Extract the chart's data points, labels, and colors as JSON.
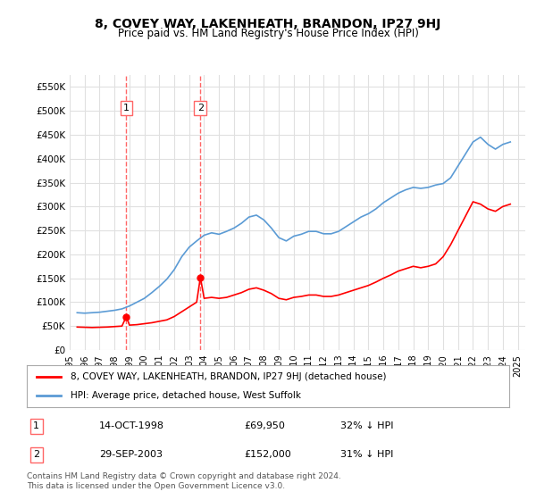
{
  "title": "8, COVEY WAY, LAKENHEATH, BRANDON, IP27 9HJ",
  "subtitle": "Price paid vs. HM Land Registry's House Price Index (HPI)",
  "ylabel_ticks": [
    "£0",
    "£50K",
    "£100K",
    "£150K",
    "£200K",
    "£250K",
    "£300K",
    "£350K",
    "£400K",
    "£450K",
    "£500K",
    "£550K"
  ],
  "y_values": [
    0,
    50000,
    100000,
    150000,
    200000,
    250000,
    300000,
    350000,
    400000,
    450000,
    500000,
    550000
  ],
  "ylim": [
    0,
    575000
  ],
  "xlim_start": 1995.5,
  "xlim_end": 2025.5,
  "hpi_color": "#5B9BD5",
  "price_color": "#FF0000",
  "grid_color": "#E0E0E0",
  "background_color": "#FFFFFF",
  "sale1_x": 1998.79,
  "sale1_y": 69950,
  "sale2_x": 2003.75,
  "sale2_y": 152000,
  "sale1_label": "1",
  "sale2_label": "2",
  "vline1_x": 1998.79,
  "vline2_x": 2003.75,
  "vline_color": "#FF6666",
  "legend_house": "8, COVEY WAY, LAKENHEATH, BRANDON, IP27 9HJ (detached house)",
  "legend_hpi": "HPI: Average price, detached house, West Suffolk",
  "table_row1": [
    "1",
    "14-OCT-1998",
    "£69,950",
    "32% ↓ HPI"
  ],
  "table_row2": [
    "2",
    "29-SEP-2003",
    "£152,000",
    "31% ↓ HPI"
  ],
  "footnote": "Contains HM Land Registry data © Crown copyright and database right 2024.\nThis data is licensed under the Open Government Licence v3.0.",
  "hpi_data_x": [
    1995.5,
    1996.0,
    1996.5,
    1997.0,
    1997.5,
    1998.0,
    1998.5,
    1999.0,
    1999.5,
    2000.0,
    2000.5,
    2001.0,
    2001.5,
    2002.0,
    2002.5,
    2003.0,
    2003.5,
    2004.0,
    2004.5,
    2005.0,
    2005.5,
    2006.0,
    2006.5,
    2007.0,
    2007.5,
    2008.0,
    2008.5,
    2009.0,
    2009.5,
    2010.0,
    2010.5,
    2011.0,
    2011.5,
    2012.0,
    2012.5,
    2013.0,
    2013.5,
    2014.0,
    2014.5,
    2015.0,
    2015.5,
    2016.0,
    2016.5,
    2017.0,
    2017.5,
    2018.0,
    2018.5,
    2019.0,
    2019.5,
    2020.0,
    2020.5,
    2021.0,
    2021.5,
    2022.0,
    2022.5,
    2023.0,
    2023.5,
    2024.0,
    2024.5
  ],
  "hpi_data_y": [
    78000,
    77000,
    78000,
    79000,
    81000,
    83000,
    86000,
    92000,
    100000,
    108000,
    120000,
    133000,
    148000,
    168000,
    195000,
    215000,
    228000,
    240000,
    245000,
    242000,
    248000,
    255000,
    265000,
    278000,
    282000,
    272000,
    255000,
    235000,
    228000,
    238000,
    242000,
    248000,
    248000,
    243000,
    243000,
    248000,
    258000,
    268000,
    278000,
    285000,
    295000,
    308000,
    318000,
    328000,
    335000,
    340000,
    338000,
    340000,
    345000,
    348000,
    360000,
    385000,
    410000,
    435000,
    445000,
    430000,
    420000,
    430000,
    435000
  ],
  "price_data_x": [
    1995.5,
    1996.0,
    1996.5,
    1997.0,
    1997.5,
    1998.0,
    1998.5,
    1998.79,
    1999.0,
    1999.5,
    2000.0,
    2000.5,
    2001.0,
    2001.5,
    2002.0,
    2002.5,
    2003.0,
    2003.5,
    2003.75,
    2004.0,
    2004.5,
    2005.0,
    2005.5,
    2006.0,
    2006.5,
    2007.0,
    2007.5,
    2008.0,
    2008.5,
    2009.0,
    2009.5,
    2010.0,
    2010.5,
    2011.0,
    2011.5,
    2012.0,
    2012.5,
    2013.0,
    2013.5,
    2014.0,
    2014.5,
    2015.0,
    2015.5,
    2016.0,
    2016.5,
    2017.0,
    2017.5,
    2018.0,
    2018.5,
    2019.0,
    2019.5,
    2020.0,
    2020.5,
    2021.0,
    2021.5,
    2022.0,
    2022.5,
    2023.0,
    2023.5,
    2024.0,
    2024.5
  ],
  "price_data_y": [
    48000,
    47500,
    47000,
    47500,
    48000,
    49000,
    50000,
    69950,
    52000,
    53000,
    55000,
    57000,
    60000,
    63000,
    70000,
    80000,
    90000,
    100000,
    152000,
    108000,
    110000,
    108000,
    110000,
    115000,
    120000,
    127000,
    130000,
    125000,
    118000,
    108000,
    105000,
    110000,
    112000,
    115000,
    115000,
    112000,
    112000,
    115000,
    120000,
    125000,
    130000,
    135000,
    142000,
    150000,
    157000,
    165000,
    170000,
    175000,
    172000,
    175000,
    180000,
    195000,
    220000,
    250000,
    280000,
    310000,
    305000,
    295000,
    290000,
    300000,
    305000
  ]
}
